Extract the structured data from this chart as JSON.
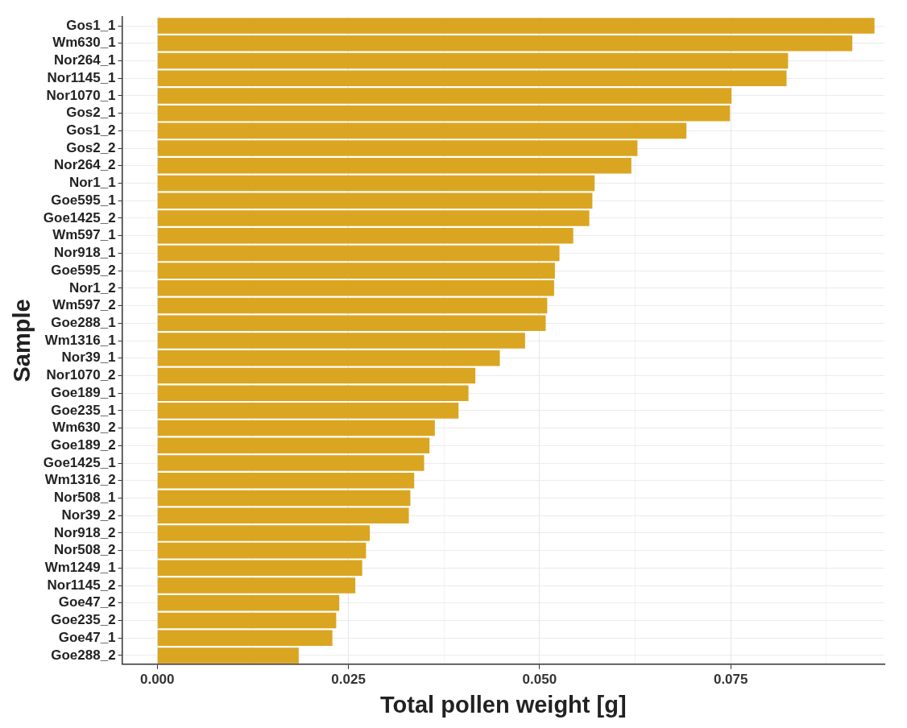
{
  "chart_data": {
    "type": "bar",
    "orientation": "horizontal",
    "xlabel": "Total pollen weight [g]",
    "ylabel": "Sample",
    "categories": [
      "Gos1_1",
      "Wm630_1",
      "Nor264_1",
      "Nor1145_1",
      "Nor1070_1",
      "Gos2_1",
      "Gos1_2",
      "Gos2_2",
      "Nor264_2",
      "Nor1_1",
      "Goe595_1",
      "Goe1425_2",
      "Wm597_1",
      "Nor918_1",
      "Goe595_2",
      "Nor1_2",
      "Wm597_2",
      "Goe288_1",
      "Wm1316_1",
      "Nor39_1",
      "Nor1070_2",
      "Goe189_1",
      "Goe235_1",
      "Wm630_2",
      "Goe189_2",
      "Goe1425_1",
      "Wm1316_2",
      "Nor508_1",
      "Nor39_2",
      "Nor918_2",
      "Nor508_2",
      "Wm1249_1",
      "Nor1145_2",
      "Goe47_2",
      "Goe235_2",
      "Goe47_1",
      "Goe288_2"
    ],
    "values": [
      0.0938,
      0.0909,
      0.0825,
      0.0823,
      0.0751,
      0.0749,
      0.0692,
      0.0628,
      0.062,
      0.0572,
      0.0569,
      0.0565,
      0.0544,
      0.0526,
      0.052,
      0.0519,
      0.051,
      0.0508,
      0.0481,
      0.0448,
      0.0416,
      0.0407,
      0.0394,
      0.0363,
      0.0356,
      0.0349,
      0.0336,
      0.0331,
      0.0329,
      0.0278,
      0.0273,
      0.0268,
      0.0259,
      0.0238,
      0.0234,
      0.0229,
      0.0185
    ],
    "color": "#daa520",
    "xlim": [
      -0.0046,
      0.0951
    ],
    "xticks": [
      {
        "value": 0,
        "label": "0.000"
      },
      {
        "value": 0.0125,
        "label": null
      },
      {
        "value": 0.025,
        "label": "0.025"
      },
      {
        "value": 0.0375,
        "label": null
      },
      {
        "value": 0.05,
        "label": "0.050"
      },
      {
        "value": 0.0625,
        "label": null
      },
      {
        "value": 0.075,
        "label": "0.075"
      },
      {
        "value": 0.0875,
        "label": null
      }
    ],
    "grid": true,
    "legend": false
  }
}
